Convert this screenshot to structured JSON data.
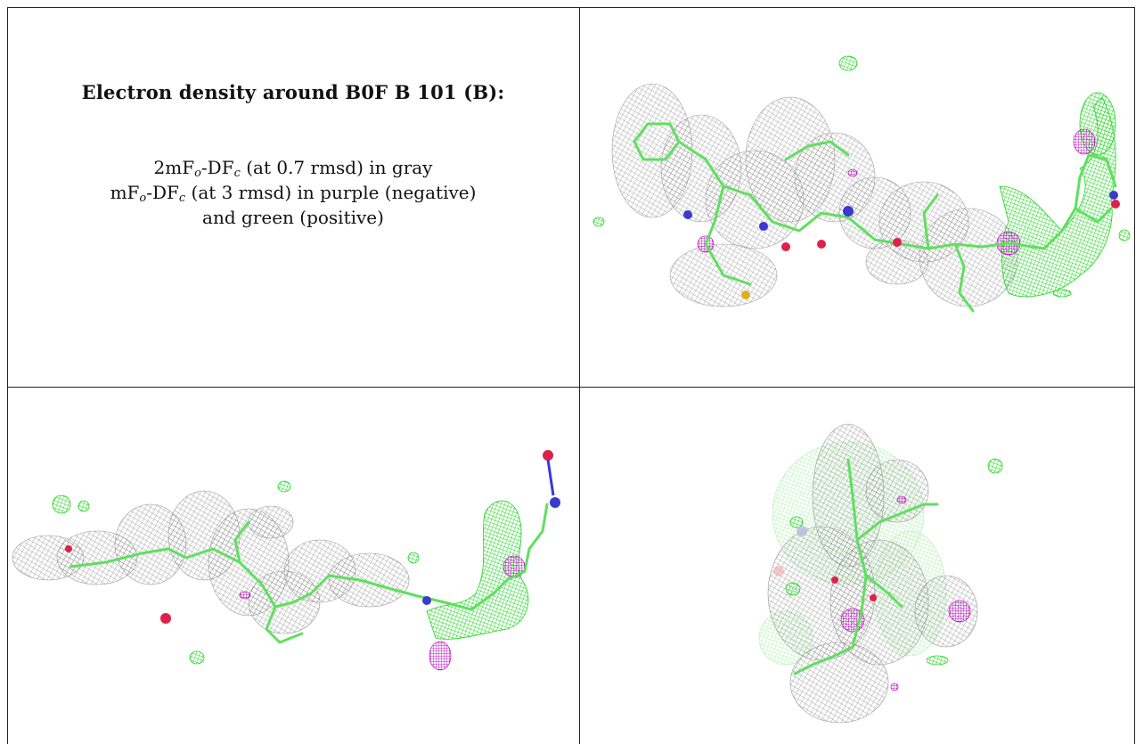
{
  "heading": "Electron density around B0F B 101 (B):",
  "legend": {
    "line1": {
      "prefix": "2mF",
      "sub1": "o",
      "mid": "-DF",
      "sub2": "c",
      "suffix": " (at 0.7 rmsd) in gray"
    },
    "line2": {
      "prefix": "mF",
      "sub1": "o",
      "mid": "-DF",
      "sub2": "c",
      "suffix": " (at 3 rmsd) in purple (negative)"
    },
    "line3": "and green (positive)"
  },
  "colors": {
    "map_2fofc": "#8c8c8c",
    "map_fofc_negative": "#c21ec8",
    "map_fofc_positive": "#27e627",
    "carbon": "#5fe05f",
    "nitrogen": "#3a3ad0",
    "oxygen": "#e0204a",
    "sulfur": "#d8b020"
  },
  "views": [
    {
      "name": "view-top-right",
      "icon": "electron-density-render-icon"
    },
    {
      "name": "view-bottom-left",
      "icon": "electron-density-render-icon"
    },
    {
      "name": "view-bottom-right",
      "icon": "electron-density-render-icon"
    }
  ]
}
